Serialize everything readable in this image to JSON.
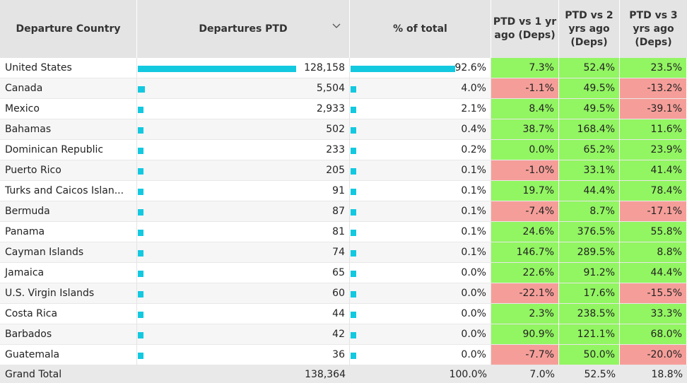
{
  "chart_data": {
    "type": "table",
    "columns": [
      "Departure Country",
      "Departures PTD",
      "% of total",
      "PTD vs 1 yr ago (Deps)",
      "PTD vs 2 yrs ago (Deps)",
      "PTD vs 3 yrs ago (Deps)"
    ],
    "sorted_column": "Departures PTD",
    "colors": {
      "bar": "#12c9e0",
      "positive": "#92f562",
      "negative": "#f59e99",
      "header": "#e4e4e4"
    },
    "rows": [
      {
        "country": "United States",
        "departures": "128,158",
        "departures_value": 128158,
        "pct_total": "92.6%",
        "pct_value": 92.6,
        "vs1": "7.3%",
        "vs2": "52.4%",
        "vs3": "23.5%"
      },
      {
        "country": "Canada",
        "departures": "5,504",
        "departures_value": 5504,
        "pct_total": "4.0%",
        "pct_value": 4.0,
        "vs1": "-1.1%",
        "vs2": "49.5%",
        "vs3": "-13.2%"
      },
      {
        "country": "Mexico",
        "departures": "2,933",
        "departures_value": 2933,
        "pct_total": "2.1%",
        "pct_value": 2.1,
        "vs1": "8.4%",
        "vs2": "49.5%",
        "vs3": "-39.1%"
      },
      {
        "country": "Bahamas",
        "departures": "502",
        "departures_value": 502,
        "pct_total": "0.4%",
        "pct_value": 0.4,
        "vs1": "38.7%",
        "vs2": "168.4%",
        "vs3": "11.6%"
      },
      {
        "country": "Dominican Republic",
        "departures": "233",
        "departures_value": 233,
        "pct_total": "0.2%",
        "pct_value": 0.2,
        "vs1": "0.0%",
        "vs2": "65.2%",
        "vs3": "23.9%"
      },
      {
        "country": "Puerto Rico",
        "departures": "205",
        "departures_value": 205,
        "pct_total": "0.1%",
        "pct_value": 0.1,
        "vs1": "-1.0%",
        "vs2": "33.1%",
        "vs3": "41.4%"
      },
      {
        "country": "Turks and Caicos Islan...",
        "departures": "91",
        "departures_value": 91,
        "pct_total": "0.1%",
        "pct_value": 0.1,
        "vs1": "19.7%",
        "vs2": "44.4%",
        "vs3": "78.4%"
      },
      {
        "country": "Bermuda",
        "departures": "87",
        "departures_value": 87,
        "pct_total": "0.1%",
        "pct_value": 0.1,
        "vs1": "-7.4%",
        "vs2": "8.7%",
        "vs3": "-17.1%"
      },
      {
        "country": "Panama",
        "departures": "81",
        "departures_value": 81,
        "pct_total": "0.1%",
        "pct_value": 0.1,
        "vs1": "24.6%",
        "vs2": "376.5%",
        "vs3": "55.8%"
      },
      {
        "country": "Cayman Islands",
        "departures": "74",
        "departures_value": 74,
        "pct_total": "0.1%",
        "pct_value": 0.1,
        "vs1": "146.7%",
        "vs2": "289.5%",
        "vs3": "8.8%"
      },
      {
        "country": "Jamaica",
        "departures": "65",
        "departures_value": 65,
        "pct_total": "0.0%",
        "pct_value": 0.0,
        "vs1": "22.6%",
        "vs2": "91.2%",
        "vs3": "44.4%"
      },
      {
        "country": "U.S. Virgin Islands",
        "departures": "60",
        "departures_value": 60,
        "pct_total": "0.0%",
        "pct_value": 0.0,
        "vs1": "-22.1%",
        "vs2": "17.6%",
        "vs3": "-15.5%"
      },
      {
        "country": "Costa Rica",
        "departures": "44",
        "departures_value": 44,
        "pct_total": "0.0%",
        "pct_value": 0.0,
        "vs1": "2.3%",
        "vs2": "238.5%",
        "vs3": "33.3%"
      },
      {
        "country": "Barbados",
        "departures": "42",
        "departures_value": 42,
        "pct_total": "0.0%",
        "pct_value": 0.0,
        "vs1": "90.9%",
        "vs2": "121.1%",
        "vs3": "68.0%"
      },
      {
        "country": "Guatemala",
        "departures": "36",
        "departures_value": 36,
        "pct_total": "0.0%",
        "pct_value": 0.0,
        "vs1": "-7.7%",
        "vs2": "50.0%",
        "vs3": "-20.0%"
      }
    ],
    "grand_total": {
      "label": "Grand Total",
      "departures": "138,364",
      "pct_total": "100.0%",
      "vs1": "7.0%",
      "vs2": "52.5%",
      "vs3": "18.8%"
    }
  }
}
